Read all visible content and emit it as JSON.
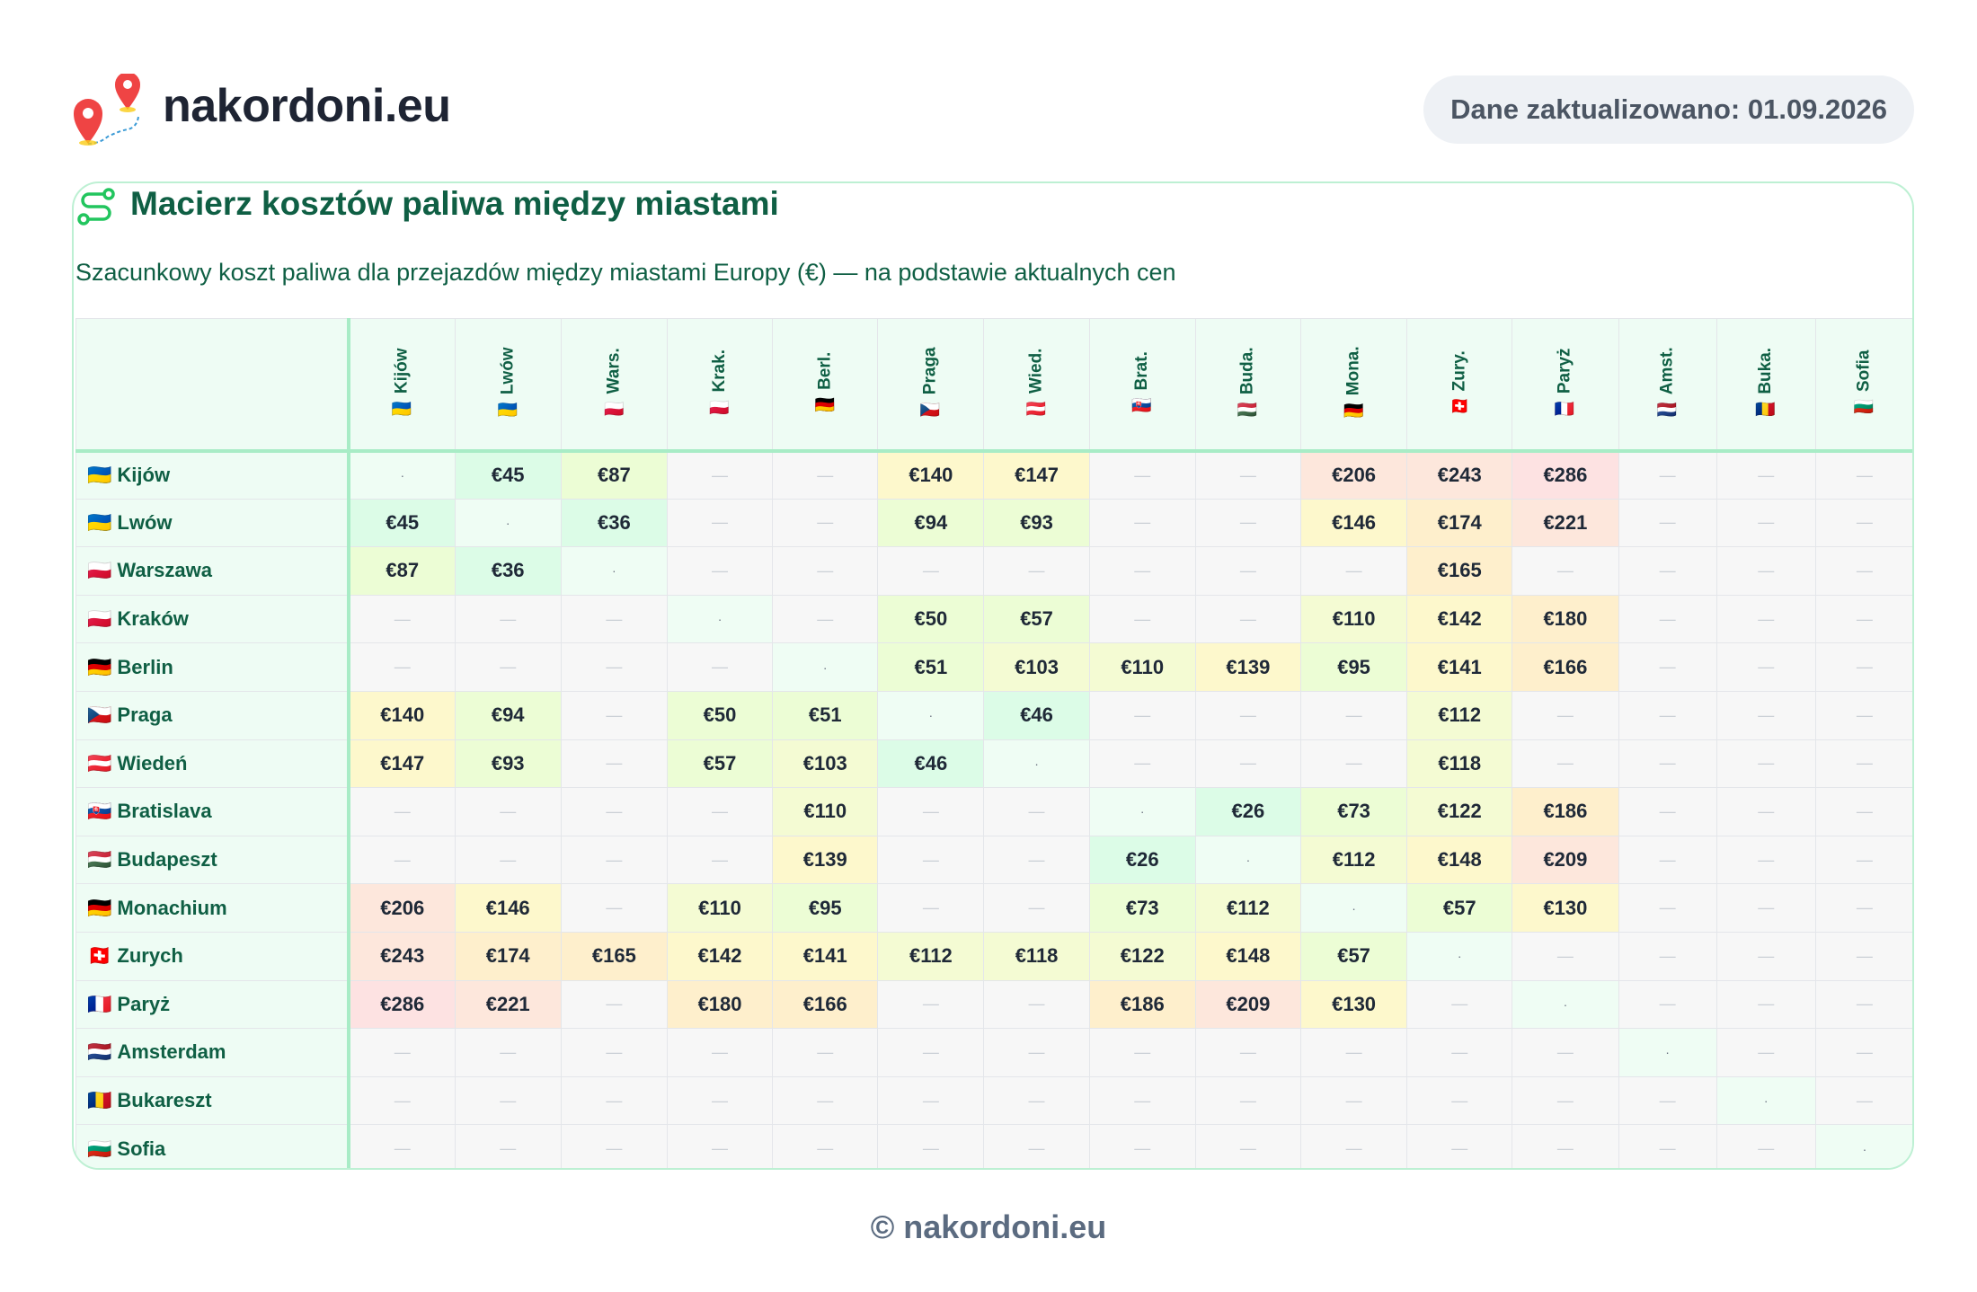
{
  "header": {
    "brand": "nakordoni.eu",
    "updated": "Dane zaktualizowano: 01.09.2026"
  },
  "card": {
    "title": "Macierz kosztów paliwa między miastami",
    "subtitle": "Szacunkowy koszt paliwa dla przejazdów między miastami Europy (€) — na podstawie aktualnych cen"
  },
  "matrix": {
    "empty_symbol": "—",
    "diag_symbol": "·",
    "columns": [
      {
        "flag": "🇺🇦",
        "short": "Kijów"
      },
      {
        "flag": "🇺🇦",
        "short": "Lwów"
      },
      {
        "flag": "🇵🇱",
        "short": "Wars."
      },
      {
        "flag": "🇵🇱",
        "short": "Krak."
      },
      {
        "flag": "🇩🇪",
        "short": "Berl."
      },
      {
        "flag": "🇨🇿",
        "short": "Praga"
      },
      {
        "flag": "🇦🇹",
        "short": "Wied."
      },
      {
        "flag": "🇸🇰",
        "short": "Brat."
      },
      {
        "flag": "🇭🇺",
        "short": "Buda."
      },
      {
        "flag": "🇩🇪",
        "short": "Mona."
      },
      {
        "flag": "🇨🇭",
        "short": "Zury."
      },
      {
        "flag": "🇫🇷",
        "short": "Paryż"
      },
      {
        "flag": "🇳🇱",
        "short": "Amst."
      },
      {
        "flag": "🇷🇴",
        "short": "Buka."
      },
      {
        "flag": "🇧🇬",
        "short": "Sofia"
      }
    ],
    "rows": [
      {
        "flag": "🇺🇦",
        "name": "Kijów",
        "values": [
          ".",
          "€45",
          "€87",
          "",
          "",
          "€140",
          "€147",
          "",
          "",
          "€206",
          "€243",
          "€286",
          "",
          "",
          ""
        ]
      },
      {
        "flag": "🇺🇦",
        "name": "Lwów",
        "values": [
          "€45",
          ".",
          "€36",
          "",
          "",
          "€94",
          "€93",
          "",
          "",
          "€146",
          "€174",
          "€221",
          "",
          "",
          ""
        ]
      },
      {
        "flag": "🇵🇱",
        "name": "Warszawa",
        "values": [
          "€87",
          "€36",
          ".",
          "",
          "",
          "",
          "",
          "",
          "",
          "",
          "€165",
          "",
          "",
          "",
          ""
        ]
      },
      {
        "flag": "🇵🇱",
        "name": "Kraków",
        "values": [
          "",
          "",
          "",
          ".",
          "",
          "€50",
          "€57",
          "",
          "",
          "€110",
          "€142",
          "€180",
          "",
          "",
          ""
        ]
      },
      {
        "flag": "🇩🇪",
        "name": "Berlin",
        "values": [
          "",
          "",
          "",
          "",
          ".",
          "€51",
          "€103",
          "€110",
          "€139",
          "€95",
          "€141",
          "€166",
          "",
          "",
          ""
        ]
      },
      {
        "flag": "🇨🇿",
        "name": "Praga",
        "values": [
          "€140",
          "€94",
          "",
          "€50",
          "€51",
          ".",
          "€46",
          "",
          "",
          "",
          "€112",
          "",
          "",
          "",
          ""
        ]
      },
      {
        "flag": "🇦🇹",
        "name": "Wiedeń",
        "values": [
          "€147",
          "€93",
          "",
          "€57",
          "€103",
          "€46",
          ".",
          "",
          "",
          "",
          "€118",
          "",
          "",
          "",
          ""
        ]
      },
      {
        "flag": "🇸🇰",
        "name": "Bratislava",
        "values": [
          "",
          "",
          "",
          "",
          "€110",
          "",
          "",
          ".",
          "€26",
          "€73",
          "€122",
          "€186",
          "",
          "",
          ""
        ]
      },
      {
        "flag": "🇭🇺",
        "name": "Budapeszt",
        "values": [
          "",
          "",
          "",
          "",
          "€139",
          "",
          "",
          "€26",
          ".",
          "€112",
          "€148",
          "€209",
          "",
          "",
          ""
        ]
      },
      {
        "flag": "🇩🇪",
        "name": "Monachium",
        "values": [
          "€206",
          "€146",
          "",
          "€110",
          "€95",
          "",
          "",
          "€73",
          "€112",
          ".",
          "€57",
          "€130",
          "",
          "",
          ""
        ]
      },
      {
        "flag": "🇨🇭",
        "name": "Zurych",
        "values": [
          "€243",
          "€174",
          "€165",
          "€142",
          "€141",
          "€112",
          "€118",
          "€122",
          "€148",
          "€57",
          ".",
          "",
          "",
          "",
          ""
        ]
      },
      {
        "flag": "🇫🇷",
        "name": "Paryż",
        "values": [
          "€286",
          "€221",
          "",
          "€180",
          "€166",
          "",
          "",
          "€186",
          "€209",
          "€130",
          "",
          ".",
          "",
          "",
          ""
        ]
      },
      {
        "flag": "🇳🇱",
        "name": "Amsterdam",
        "values": [
          "",
          "",
          "",
          "",
          "",
          "",
          "",
          "",
          "",
          "",
          "",
          "",
          ".",
          "",
          ""
        ]
      },
      {
        "flag": "🇷🇴",
        "name": "Bukareszt",
        "values": [
          "",
          "",
          "",
          "",
          "",
          "",
          "",
          "",
          "",
          "",
          "",
          "",
          "",
          ".",
          ""
        ]
      },
      {
        "flag": "🇧🇬",
        "name": "Sofia",
        "values": [
          "",
          "",
          "",
          "",
          "",
          "",
          "",
          "",
          "",
          "",
          "",
          "",
          "",
          "",
          "."
        ]
      }
    ]
  },
  "footer": {
    "text": "© nakordoni.eu"
  }
}
